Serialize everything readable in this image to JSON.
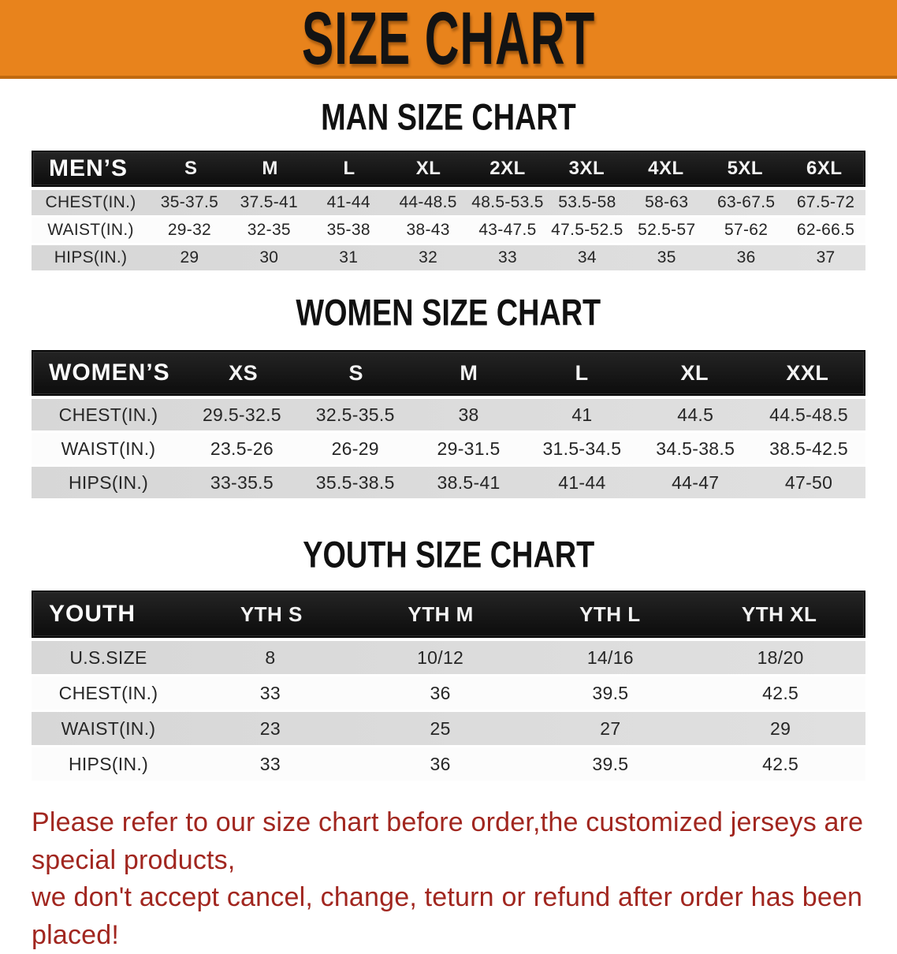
{
  "banner": {
    "title": "SIZE CHART"
  },
  "sections": [
    {
      "heading": "MAN SIZE CHART",
      "table": {
        "group_label": "MEN’S",
        "columns": [
          "S",
          "M",
          "L",
          "XL",
          "2XL",
          "3XL",
          "4XL",
          "5XL",
          "6XL"
        ],
        "rows": [
          {
            "label": "CHEST(IN.)",
            "values": [
              "35-37.5",
              "37.5-41",
              "41-44",
              "44-48.5",
              "48.5-53.5",
              "53.5-58",
              "58-63",
              "63-67.5",
              "67.5-72"
            ]
          },
          {
            "label": "WAIST(IN.)",
            "values": [
              "29-32",
              "32-35",
              "35-38",
              "38-43",
              "43-47.5",
              "47.5-52.5",
              "52.5-57",
              "57-62",
              "62-66.5"
            ]
          },
          {
            "label": "HIPS(IN.)",
            "values": [
              "29",
              "30",
              "31",
              "32",
              "33",
              "34",
              "35",
              "36",
              "37"
            ]
          }
        ]
      }
    },
    {
      "heading": "WOMEN SIZE CHART",
      "table": {
        "group_label": "WOMEN’S",
        "columns": [
          "XS",
          "S",
          "M",
          "L",
          "XL",
          "XXL"
        ],
        "rows": [
          {
            "label": "CHEST(IN.)",
            "values": [
              "29.5-32.5",
              "32.5-35.5",
              "38",
              "41",
              "44.5",
              "44.5-48.5"
            ]
          },
          {
            "label": "WAIST(IN.)",
            "values": [
              "23.5-26",
              "26-29",
              "29-31.5",
              "31.5-34.5",
              "34.5-38.5",
              "38.5-42.5"
            ]
          },
          {
            "label": "HIPS(IN.)",
            "values": [
              "33-35.5",
              "35.5-38.5",
              "38.5-41",
              "41-44",
              "44-47",
              "47-50"
            ]
          }
        ]
      }
    },
    {
      "heading": "YOUTH SIZE CHART",
      "table": {
        "group_label": "YOUTH",
        "columns": [
          "YTH S",
          "YTH M",
          "YTH L",
          "YTH XL"
        ],
        "rows": [
          {
            "label": "U.S.SIZE",
            "values": [
              "8",
              "10/12",
              "14/16",
              "18/20"
            ]
          },
          {
            "label": "CHEST(IN.)",
            "values": [
              "33",
              "36",
              "39.5",
              "42.5"
            ]
          },
          {
            "label": "WAIST(IN.)",
            "values": [
              "23",
              "25",
              "27",
              "29"
            ]
          },
          {
            "label": "HIPS(IN.)",
            "values": [
              "33",
              "36",
              "39.5",
              "42.5"
            ]
          }
        ]
      }
    }
  ],
  "disclaimer": {
    "line1": "Please refer to our size chart before order,the customized jerseys are special products,",
    "line2": "we don't accept cancel, change, teturn or refund after order has been placed!",
    "text_color": "#A1261F"
  },
  "colors": {
    "banner_bg": "#E8831C",
    "banner_border": "#C16A10",
    "banner_text": "#131313",
    "table_header_bg": "#161616",
    "table_header_text": "#FFFFFF",
    "stripe_gray": "#DADADA",
    "stripe_white": "#FCFCFC",
    "heading_text": "#111111"
  }
}
